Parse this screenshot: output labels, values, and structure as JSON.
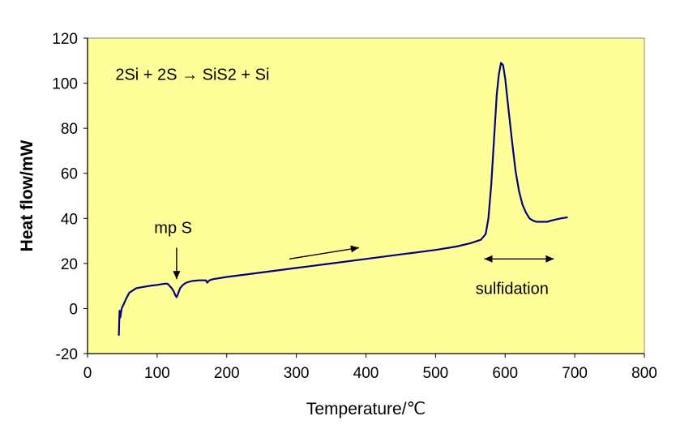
{
  "chart_data": {
    "type": "line",
    "title": "",
    "xlabel": "Temperature/℃",
    "ylabel": "Heat flow/mW",
    "xlim": [
      0,
      800
    ],
    "ylim": [
      -20,
      120
    ],
    "xticks": [
      0,
      100,
      200,
      300,
      400,
      500,
      600,
      700,
      800
    ],
    "yticks": [
      -20,
      0,
      20,
      40,
      60,
      80,
      100,
      120
    ],
    "grid": false,
    "legend": "none",
    "plot_background": "#ffff99",
    "series_color": "#000080",
    "series": [
      {
        "x": [
          45,
          46,
          47,
          49,
          52,
          55,
          60,
          65,
          70,
          80,
          90,
          100,
          110,
          115,
          118,
          121,
          124,
          126,
          128,
          130,
          133,
          137,
          142,
          150,
          160,
          170,
          172,
          175,
          180,
          200,
          250,
          300,
          350,
          400,
          450,
          500,
          530,
          550,
          565,
          572,
          576,
          580,
          584,
          588,
          591,
          594,
          597,
          600,
          605,
          610,
          615,
          620,
          625,
          630,
          635,
          640,
          645,
          650,
          655,
          660,
          670,
          680,
          690
        ],
        "y": [
          -12,
          -1,
          -4,
          0,
          2,
          4,
          7,
          8,
          9,
          9.6,
          10.1,
          10.5,
          11,
          11,
          10,
          9,
          7.5,
          6,
          5,
          6.5,
          9,
          10.5,
          11.5,
          12.2,
          12.5,
          12.5,
          11.5,
          12.5,
          13,
          14,
          16,
          18,
          20,
          22,
          24,
          26,
          27.5,
          29,
          30.5,
          33,
          40,
          55,
          75,
          95,
          104,
          109,
          108,
          102,
          88,
          74,
          61,
          52,
          46,
          42.5,
          40,
          39,
          38.5,
          38.5,
          38.5,
          38.5,
          39.3,
          40,
          40.5
        ]
      }
    ],
    "annotations": {
      "reaction": "2Si + 2S → SiS2 + Si",
      "mp_label": "mp S",
      "sulfidation_label": "sulfidation"
    },
    "arrows": [
      {
        "name": "mp-arrow",
        "from": [
          128,
          27
        ],
        "to": [
          128,
          13
        ]
      },
      {
        "name": "heating-direction-arrow",
        "from": [
          290,
          22
        ],
        "to": [
          390,
          27
        ]
      },
      {
        "name": "sulfidation-range-arrow",
        "from": [
          570,
          22
        ],
        "to": [
          670,
          22
        ],
        "double": true
      }
    ]
  }
}
